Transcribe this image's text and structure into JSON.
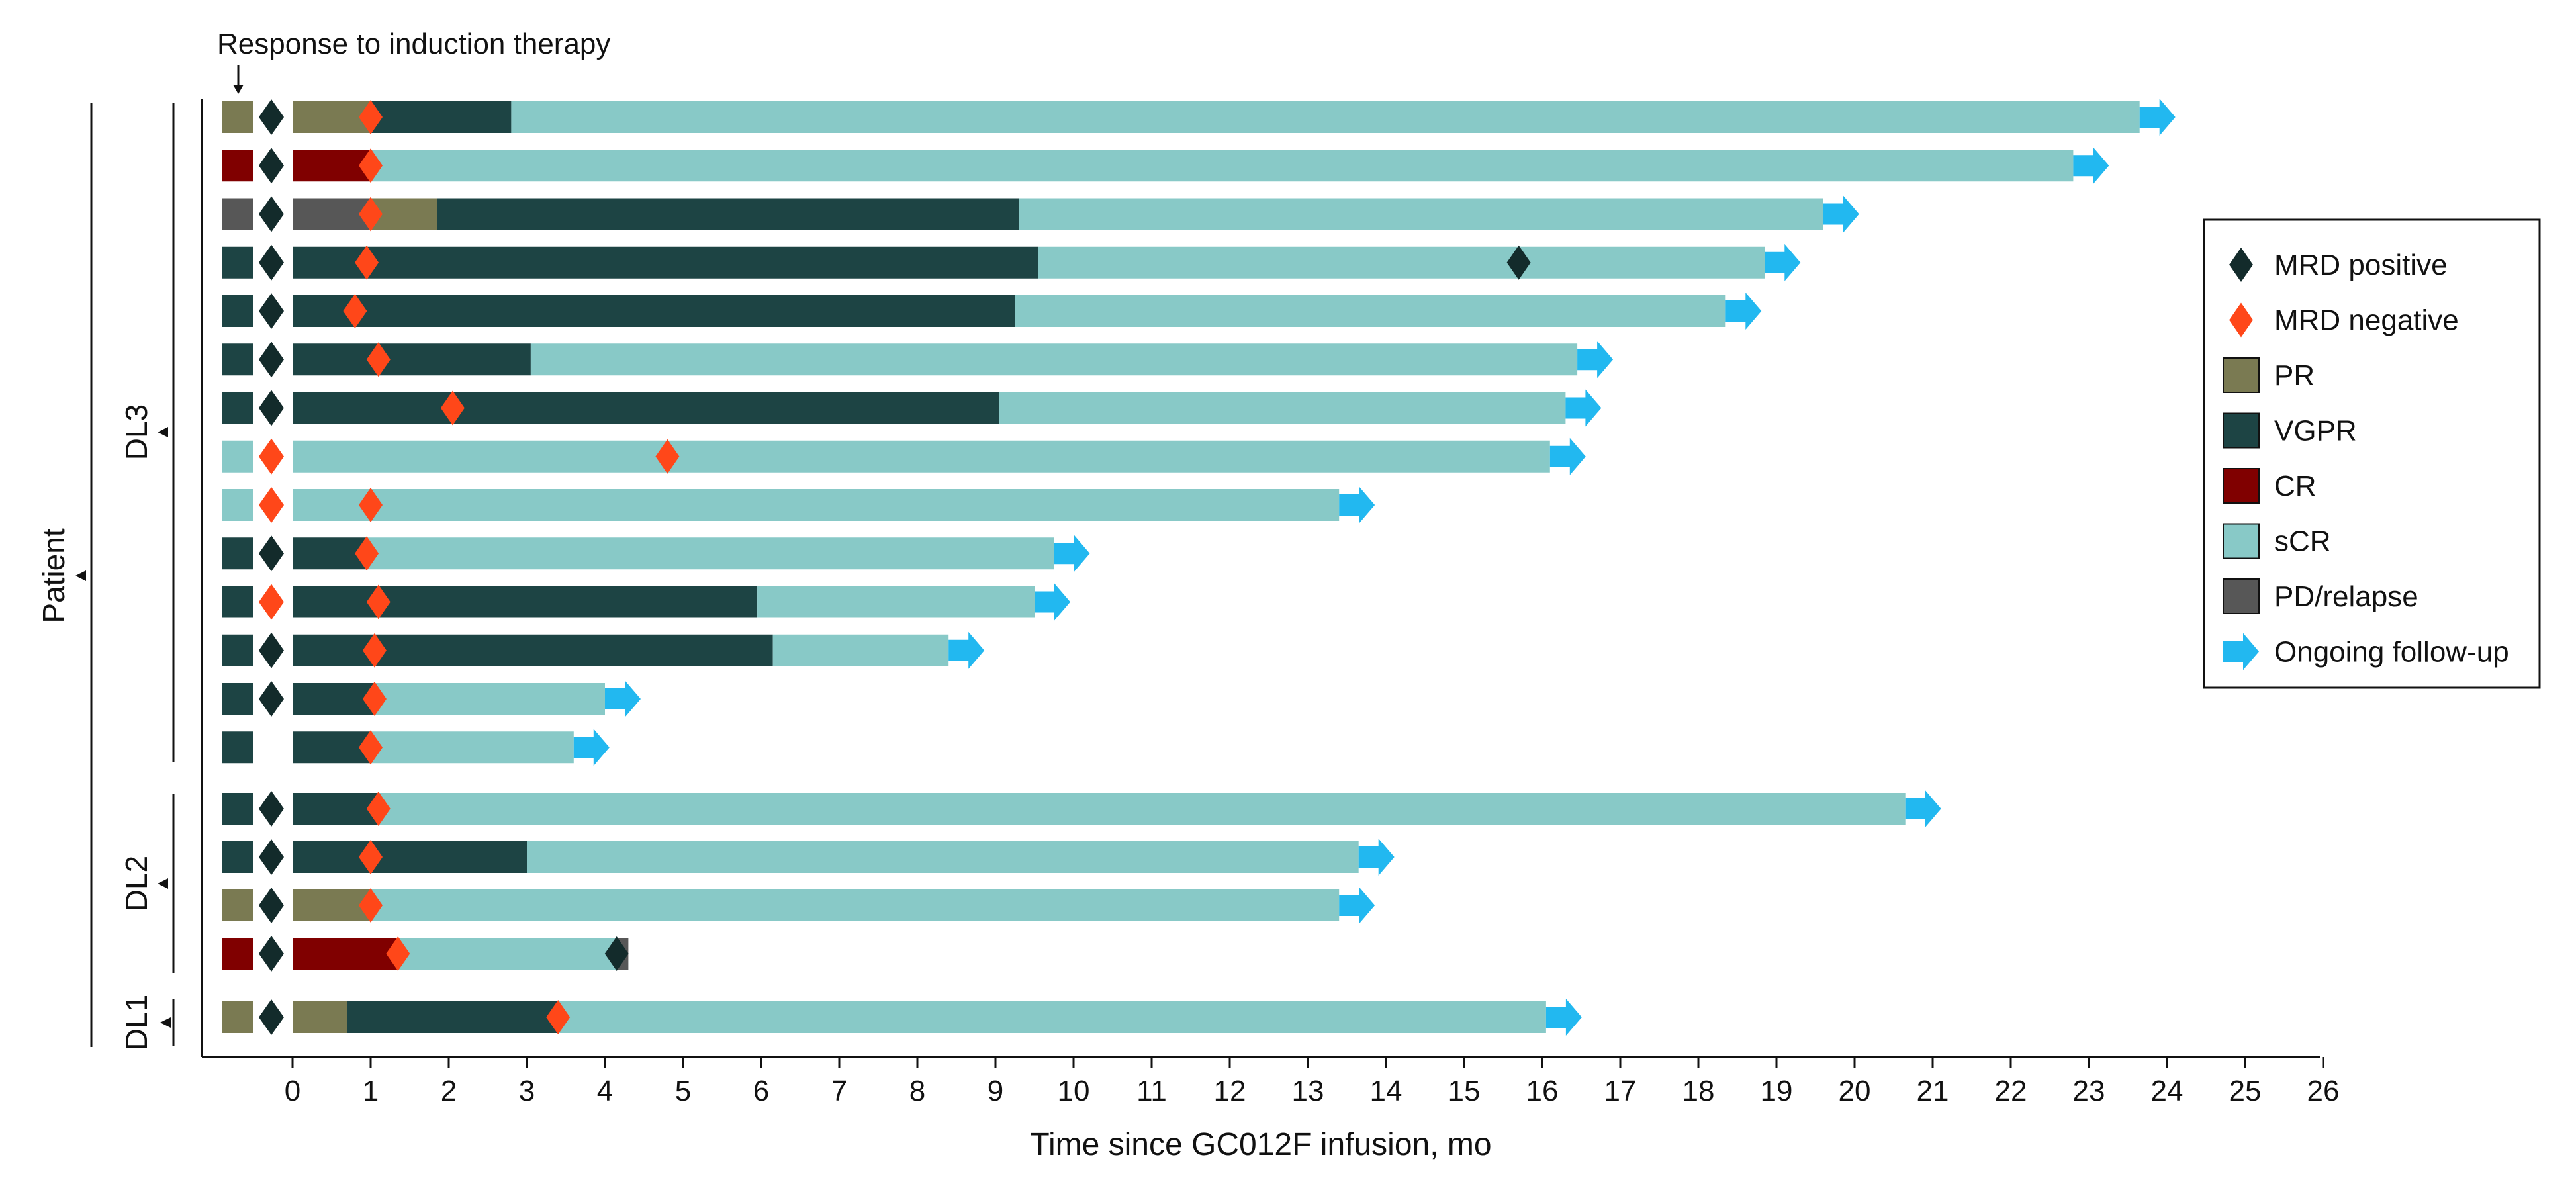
{
  "chart_data": {
    "type": "swimmer",
    "title": "",
    "top_annotation": "Response to induction therapy",
    "xlabel": "Time since GC012F infusion, mo",
    "ylabel": "Patient",
    "xlim": [
      0,
      26
    ],
    "x_ticks": [
      "0",
      "1",
      "2",
      "3",
      "4",
      "5",
      "6",
      "7",
      "8",
      "9",
      "10",
      "11",
      "12",
      "13",
      "14",
      "15",
      "16",
      "17",
      "18",
      "19",
      "20",
      "21",
      "22",
      "23",
      "24",
      "25",
      "26"
    ],
    "groups": [
      {
        "label": "DL3",
        "rows": [
          0,
          13
        ]
      },
      {
        "label": "DL2",
        "rows": [
          14,
          17
        ]
      },
      {
        "label": "DL1",
        "rows": [
          18,
          18
        ]
      }
    ],
    "categories": {
      "PR": "#7a7a52",
      "VGPR": "#1d4444",
      "CR": "#800000",
      "sCR": "#88c9c7",
      "PD/relapse": "#575757"
    },
    "marker_colors": {
      "MRD positive": "#132b2b",
      "MRD negative": "#ff4719",
      "Ongoing follow-up": "#22b8f0"
    },
    "legend": {
      "position": "right",
      "items": [
        {
          "label": "MRD positive",
          "kind": "diamond",
          "color": "#132b2b"
        },
        {
          "label": "MRD negative",
          "kind": "diamond",
          "color": "#ff4719"
        },
        {
          "label": "PR",
          "kind": "box",
          "color": "#7a7a52"
        },
        {
          "label": "VGPR",
          "kind": "box",
          "color": "#1d4444"
        },
        {
          "label": "CR",
          "kind": "box",
          "color": "#800000"
        },
        {
          "label": "sCR",
          "kind": "box",
          "color": "#88c9c7"
        },
        {
          "label": "PD/relapse",
          "kind": "box",
          "color": "#575757"
        },
        {
          "label": "Ongoing follow-up",
          "kind": "arrow",
          "color": "#22b8f0"
        }
      ]
    },
    "patients": [
      {
        "induction": "PR",
        "induction_mrd": "positive",
        "segments": [
          {
            "start": 0,
            "end": 1,
            "response": "PR"
          },
          {
            "start": 1,
            "end": 2.8,
            "response": "VGPR"
          },
          {
            "start": 2.8,
            "end": 23.65,
            "response": "sCR"
          }
        ],
        "mrd": [
          {
            "x": 1.0,
            "status": "negative"
          }
        ],
        "ongoing": true
      },
      {
        "induction": "CR",
        "induction_mrd": "positive",
        "segments": [
          {
            "start": 0,
            "end": 1,
            "response": "CR"
          },
          {
            "start": 1,
            "end": 22.8,
            "response": "sCR"
          }
        ],
        "mrd": [
          {
            "x": 1.0,
            "status": "negative"
          }
        ],
        "ongoing": true
      },
      {
        "induction": "PD/relapse",
        "induction_mrd": "positive",
        "segments": [
          {
            "start": 0,
            "end": 1,
            "response": "PD/relapse"
          },
          {
            "start": 1,
            "end": 1.85,
            "response": "PR"
          },
          {
            "start": 1.85,
            "end": 9.3,
            "response": "VGPR"
          },
          {
            "start": 9.3,
            "end": 19.6,
            "response": "sCR"
          }
        ],
        "mrd": [
          {
            "x": 1.0,
            "status": "negative"
          }
        ],
        "ongoing": true
      },
      {
        "induction": "VGPR",
        "induction_mrd": "positive",
        "segments": [
          {
            "start": 0,
            "end": 9.55,
            "response": "VGPR"
          },
          {
            "start": 9.55,
            "end": 18.85,
            "response": "sCR"
          }
        ],
        "mrd": [
          {
            "x": 0.95,
            "status": "negative"
          },
          {
            "x": 15.7,
            "status": "positive"
          }
        ],
        "ongoing": true
      },
      {
        "induction": "VGPR",
        "induction_mrd": "positive",
        "segments": [
          {
            "start": 0,
            "end": 9.25,
            "response": "VGPR"
          },
          {
            "start": 9.25,
            "end": 18.35,
            "response": "sCR"
          }
        ],
        "mrd": [
          {
            "x": 0.8,
            "status": "negative"
          }
        ],
        "ongoing": true
      },
      {
        "induction": "VGPR",
        "induction_mrd": "positive",
        "segments": [
          {
            "start": 0,
            "end": 3.05,
            "response": "VGPR"
          },
          {
            "start": 3.05,
            "end": 16.45,
            "response": "sCR"
          }
        ],
        "mrd": [
          {
            "x": 1.1,
            "status": "negative"
          }
        ],
        "ongoing": true
      },
      {
        "induction": "VGPR",
        "induction_mrd": "positive",
        "segments": [
          {
            "start": 0,
            "end": 9.05,
            "response": "VGPR"
          },
          {
            "start": 9.05,
            "end": 16.3,
            "response": "sCR"
          }
        ],
        "mrd": [
          {
            "x": 2.05,
            "status": "negative"
          }
        ],
        "ongoing": true
      },
      {
        "induction": "sCR",
        "induction_mrd": "negative",
        "segments": [
          {
            "start": 0,
            "end": 16.1,
            "response": "sCR"
          }
        ],
        "mrd": [
          {
            "x": 4.8,
            "status": "negative"
          }
        ],
        "ongoing": true
      },
      {
        "induction": "sCR",
        "induction_mrd": "negative",
        "segments": [
          {
            "start": 0,
            "end": 13.4,
            "response": "sCR"
          }
        ],
        "mrd": [
          {
            "x": 1.0,
            "status": "negative"
          }
        ],
        "ongoing": true
      },
      {
        "induction": "VGPR",
        "induction_mrd": "positive",
        "segments": [
          {
            "start": 0,
            "end": 0.95,
            "response": "VGPR"
          },
          {
            "start": 0.95,
            "end": 9.75,
            "response": "sCR"
          }
        ],
        "mrd": [
          {
            "x": 0.95,
            "status": "negative"
          }
        ],
        "ongoing": true
      },
      {
        "induction": "VGPR",
        "induction_mrd": "negative",
        "segments": [
          {
            "start": 0,
            "end": 5.95,
            "response": "VGPR"
          },
          {
            "start": 5.95,
            "end": 9.5,
            "response": "sCR"
          }
        ],
        "mrd": [
          {
            "x": 1.1,
            "status": "negative"
          }
        ],
        "ongoing": true
      },
      {
        "induction": "VGPR",
        "induction_mrd": "positive",
        "segments": [
          {
            "start": 0,
            "end": 6.15,
            "response": "VGPR"
          },
          {
            "start": 6.15,
            "end": 8.4,
            "response": "sCR"
          }
        ],
        "mrd": [
          {
            "x": 1.05,
            "status": "negative"
          }
        ],
        "ongoing": true
      },
      {
        "induction": "VGPR",
        "induction_mrd": "positive",
        "segments": [
          {
            "start": 0,
            "end": 1.05,
            "response": "VGPR"
          },
          {
            "start": 1.05,
            "end": 4.0,
            "response": "sCR"
          }
        ],
        "mrd": [
          {
            "x": 1.05,
            "status": "negative"
          }
        ],
        "ongoing": true
      },
      {
        "induction": "VGPR",
        "induction_mrd": "none",
        "segments": [
          {
            "start": 0,
            "end": 1.0,
            "response": "VGPR"
          },
          {
            "start": 1.0,
            "end": 3.6,
            "response": "sCR"
          }
        ],
        "mrd": [
          {
            "x": 1.0,
            "status": "negative"
          }
        ],
        "ongoing": true
      },
      {
        "induction": "VGPR",
        "induction_mrd": "positive",
        "segments": [
          {
            "start": 0,
            "end": 1.1,
            "response": "VGPR"
          },
          {
            "start": 1.1,
            "end": 20.65,
            "response": "sCR"
          }
        ],
        "mrd": [
          {
            "x": 1.1,
            "status": "negative"
          }
        ],
        "ongoing": true
      },
      {
        "induction": "VGPR",
        "induction_mrd": "positive",
        "segments": [
          {
            "start": 0,
            "end": 3.0,
            "response": "VGPR"
          },
          {
            "start": 3.0,
            "end": 13.65,
            "response": "sCR"
          }
        ],
        "mrd": [
          {
            "x": 1.0,
            "status": "negative"
          }
        ],
        "ongoing": true
      },
      {
        "induction": "PR",
        "induction_mrd": "positive",
        "segments": [
          {
            "start": 0,
            "end": 1.0,
            "response": "PR"
          },
          {
            "start": 1.0,
            "end": 13.4,
            "response": "sCR"
          }
        ],
        "mrd": [
          {
            "x": 1.0,
            "status": "negative"
          }
        ],
        "ongoing": true
      },
      {
        "induction": "CR",
        "induction_mrd": "positive",
        "segments": [
          {
            "start": 0,
            "end": 1.35,
            "response": "CR"
          },
          {
            "start": 1.35,
            "end": 4.15,
            "response": "sCR"
          },
          {
            "start": 4.15,
            "end": 4.3,
            "response": "PD/relapse"
          }
        ],
        "mrd": [
          {
            "x": 1.35,
            "status": "negative"
          },
          {
            "x": 4.15,
            "status": "positive"
          }
        ],
        "ongoing": false
      },
      {
        "induction": "PR",
        "induction_mrd": "positive",
        "segments": [
          {
            "start": 0,
            "end": 0.7,
            "response": "PR"
          },
          {
            "start": 0.7,
            "end": 3.4,
            "response": "VGPR"
          },
          {
            "start": 3.4,
            "end": 16.05,
            "response": "sCR"
          }
        ],
        "mrd": [
          {
            "x": 3.4,
            "status": "negative"
          }
        ],
        "ongoing": true
      }
    ]
  }
}
